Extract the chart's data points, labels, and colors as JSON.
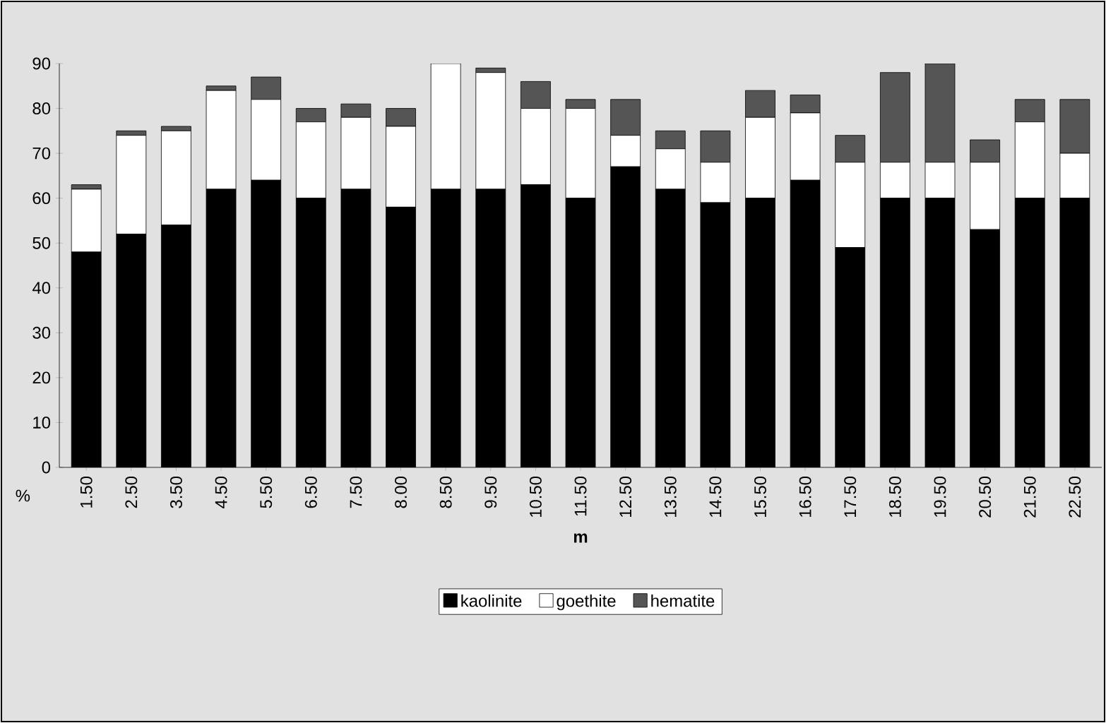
{
  "chart_data": {
    "type": "bar",
    "stacked": true,
    "xlabel": "m",
    "ylabel": "%",
    "categories": [
      "1.50",
      "2.50",
      "3.50",
      "4.50",
      "5.50",
      "6.50",
      "7.50",
      "8.00",
      "8.50",
      "9.50",
      "10.50",
      "11.50",
      "12.50",
      "13.50",
      "14.50",
      "15.50",
      "16.50",
      "17.50",
      "18.50",
      "19.50",
      "20.50",
      "21.50",
      "22.50"
    ],
    "series": [
      {
        "name": "kaolinite",
        "color": "#000000",
        "values": [
          48,
          52,
          54,
          62,
          64,
          60,
          62,
          58,
          62,
          62,
          63,
          60,
          67,
          62,
          59,
          60,
          64,
          49,
          60,
          60,
          53,
          60,
          60
        ]
      },
      {
        "name": "goethite",
        "color": "#ffffff",
        "values": [
          14,
          22,
          21,
          22,
          18,
          17,
          16,
          18,
          28,
          26,
          17,
          20,
          7,
          9,
          9,
          18,
          15,
          19,
          8,
          8,
          15,
          17,
          10
        ]
      },
      {
        "name": "hematite",
        "color": "#555555",
        "values": [
          1,
          1,
          1,
          1,
          5,
          3,
          3,
          4,
          0,
          1,
          6,
          2,
          8,
          4,
          7,
          6,
          4,
          6,
          20,
          22,
          5,
          5,
          12
        ]
      }
    ],
    "ylim": [
      0,
      90
    ],
    "yticks": [
      0,
      10,
      20,
      30,
      40,
      50,
      60,
      70,
      80,
      90
    ],
    "grid": false,
    "legend": "bottom"
  }
}
